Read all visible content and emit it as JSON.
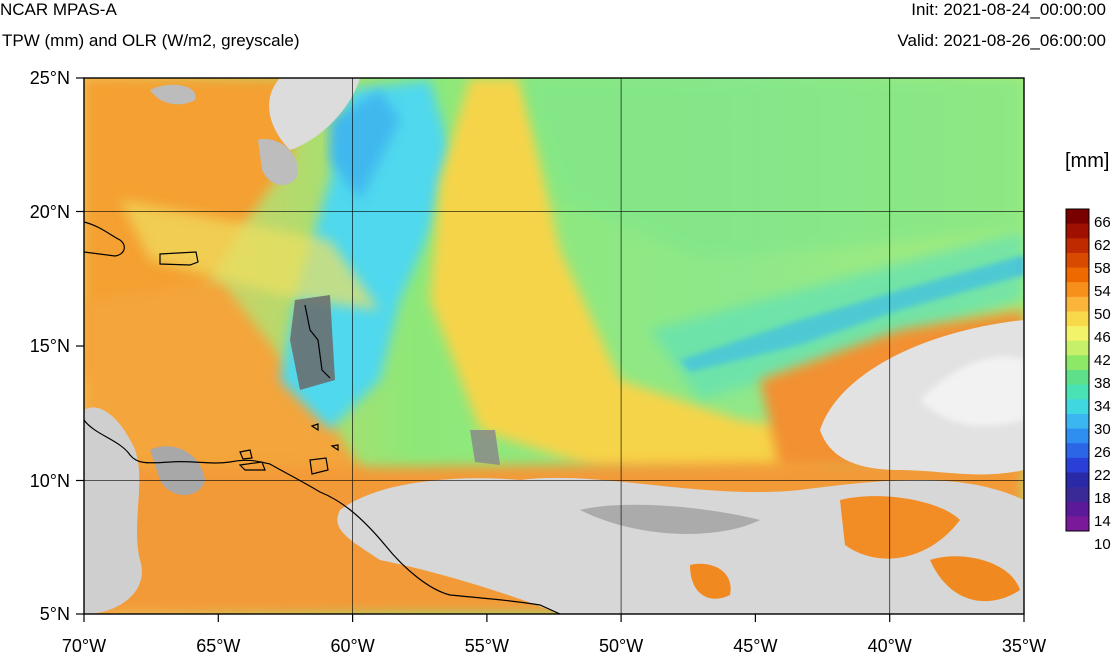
{
  "header": {
    "title": "NCAR MPAS-A",
    "subtitle": "TPW (mm) and OLR (W/m2, greyscale)",
    "init": "Init: 2021-08-24_00:00:00",
    "valid": "Valid: 2021-08-26_06:00:00"
  },
  "map": {
    "lon_range": [
      -70,
      -35
    ],
    "lat_range": [
      5,
      25
    ],
    "lon_ticks": [
      "70°W",
      "65°W",
      "60°W",
      "55°W",
      "50°W",
      "45°W",
      "40°W",
      "35°W"
    ],
    "lat_ticks": [
      "25°N",
      "20°N",
      "15°N",
      "10°N",
      "5°N"
    ],
    "grid_lons": [
      -60,
      -50,
      -40
    ],
    "grid_lats": [
      20,
      10
    ]
  },
  "colorbar": {
    "units": "[mm]",
    "labels": [
      "66",
      "62",
      "58",
      "54",
      "50",
      "46",
      "42",
      "38",
      "34",
      "30",
      "26",
      "22",
      "18",
      "14",
      "10"
    ],
    "colors": [
      "#7a0000",
      "#a01000",
      "#c02a00",
      "#d84a00",
      "#ee6a00",
      "#f7901a",
      "#fbb53a",
      "#f7d94a",
      "#f3f36a",
      "#c6f06a",
      "#8de868",
      "#5ee08a",
      "#48e2b5",
      "#40d8e0",
      "#3cb6f0",
      "#2f8ff0",
      "#2a66e6",
      "#2a3fd8",
      "#2a2aa8",
      "#3a2a98",
      "#5a1a9a",
      "#7a1a9a"
    ]
  },
  "field_colors": {
    "tpw_low": "#40d8f0",
    "tpw_mid": "#8de86a",
    "tpw_high": "#f7d94a",
    "tpw_max": "#f08a20",
    "olr_cloud": "#e8e8e8",
    "olr_dark": "#707070"
  }
}
